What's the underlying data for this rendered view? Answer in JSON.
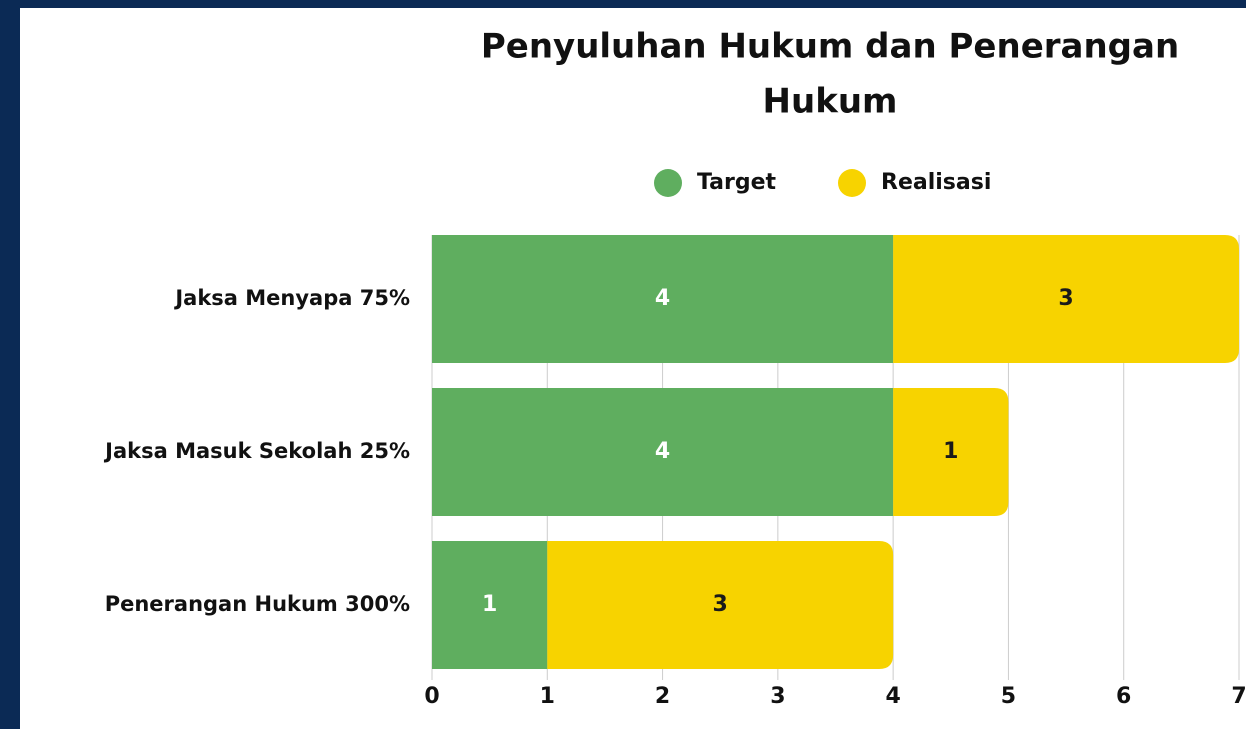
{
  "chart_data": {
    "type": "stacked-bar-horizontal",
    "title": [
      "Penyuluhan Hukum dan Penerangan",
      "Hukum"
    ],
    "categories": [
      "Jaksa Menyapa 75%",
      "Jaksa Masuk Sekolah 25%",
      "Penerangan Hukum 300%"
    ],
    "series": [
      {
        "name": "Target",
        "color": "#5fae5f",
        "label_color": "#ffffff",
        "values": [
          4,
          4,
          1
        ]
      },
      {
        "name": "Realisasi",
        "color": "#f7d300",
        "label_color": "#1a1a1a",
        "values": [
          3,
          1,
          3
        ]
      }
    ],
    "xlim": [
      0,
      7
    ],
    "xticks": [
      0,
      1,
      2,
      3,
      4,
      5,
      6,
      7
    ],
    "grid": true,
    "legend": "top"
  }
}
